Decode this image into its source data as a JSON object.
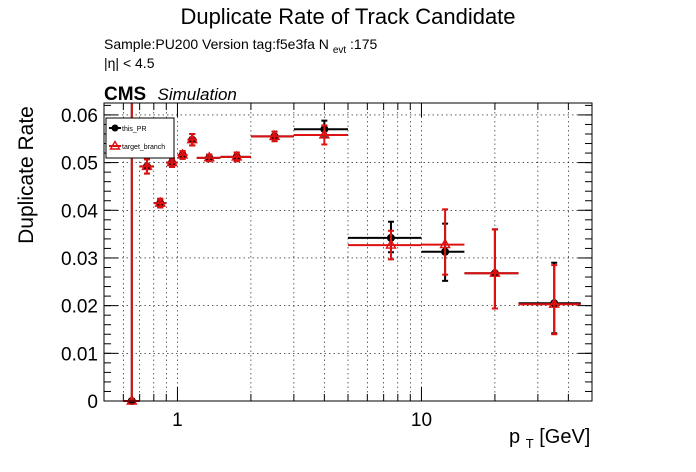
{
  "chart_data": {
    "type": "scatter",
    "title": "Duplicate Rate of Track Candidate",
    "info_line1": "Sample:PU200   Version tag:f5e3fa  N",
    "info_nevt_sub": "evt",
    "info_nevt_val": ":175",
    "info_line2": "|η| < 4.5",
    "cms_label": "CMS",
    "cms_sub": "Simulation",
    "xlabel_main": "p",
    "xlabel_sub": "T",
    "xlabel_unit": " [GeV]",
    "ylabel": "Duplicate Rate",
    "x_scale": "log",
    "xlim": [
      0.5,
      50
    ],
    "ylim": [
      0,
      0.0625
    ],
    "grid": true,
    "legend_position": "top-left",
    "x_tick_labels": [
      {
        "value": 1,
        "label": "1"
      },
      {
        "value": 10,
        "label": "10"
      }
    ],
    "y_tick_labels": [
      {
        "value": 0,
        "label": "0"
      },
      {
        "value": 0.01,
        "label": "0.01"
      },
      {
        "value": 0.02,
        "label": "0.02"
      },
      {
        "value": 0.03,
        "label": "0.03"
      },
      {
        "value": 0.04,
        "label": "0.04"
      },
      {
        "value": 0.05,
        "label": "0.05"
      },
      {
        "value": 0.06,
        "label": "0.06"
      }
    ],
    "series": [
      {
        "name": "this_PR",
        "color": "#000000",
        "marker": "circle",
        "points": [
          {
            "x": 0.65,
            "xlo": 0.6,
            "xhi": 0.7,
            "y": 0.0,
            "ylo": 0.0,
            "yhi": 0.0625
          },
          {
            "x": 0.75,
            "xlo": 0.7,
            "xhi": 0.8,
            "y": 0.0492,
            "ylo": 0.0477,
            "yhi": 0.0507
          },
          {
            "x": 0.85,
            "xlo": 0.8,
            "xhi": 0.9,
            "y": 0.0415,
            "ylo": 0.0406,
            "yhi": 0.0424
          },
          {
            "x": 0.95,
            "xlo": 0.9,
            "xhi": 1.0,
            "y": 0.05,
            "ylo": 0.0491,
            "yhi": 0.0509
          },
          {
            "x": 1.05,
            "xlo": 1.0,
            "xhi": 1.1,
            "y": 0.0516,
            "ylo": 0.0508,
            "yhi": 0.0524
          },
          {
            "x": 1.15,
            "xlo": 1.1,
            "xhi": 1.2,
            "y": 0.0548,
            "ylo": 0.0536,
            "yhi": 0.056
          },
          {
            "x": 1.35,
            "xlo": 1.2,
            "xhi": 1.5,
            "y": 0.051,
            "ylo": 0.0503,
            "yhi": 0.0517
          },
          {
            "x": 1.75,
            "xlo": 1.5,
            "xhi": 2.0,
            "y": 0.0512,
            "ylo": 0.0503,
            "yhi": 0.0521
          },
          {
            "x": 2.5,
            "xlo": 2.0,
            "xhi": 3.0,
            "y": 0.0555,
            "ylo": 0.0545,
            "yhi": 0.0565
          },
          {
            "x": 4.0,
            "xlo": 3.0,
            "xhi": 5.0,
            "y": 0.057,
            "ylo": 0.0553,
            "yhi": 0.0588
          },
          {
            "x": 7.5,
            "xlo": 5.0,
            "xhi": 10.0,
            "y": 0.0342,
            "ylo": 0.0312,
            "yhi": 0.0376
          },
          {
            "x": 12.5,
            "xlo": 10.0,
            "xhi": 15.0,
            "y": 0.0313,
            "ylo": 0.0252,
            "yhi": 0.0372
          },
          {
            "x": 20.0,
            "xlo": 15.0,
            "xhi": 25.0,
            "y": 0.0268,
            "ylo": 0.0194,
            "yhi": 0.036
          },
          {
            "x": 35.0,
            "xlo": 25.0,
            "xhi": 45.0,
            "y": 0.0205,
            "ylo": 0.0142,
            "yhi": 0.029
          }
        ]
      },
      {
        "name": "target_branch",
        "color": "#dd1111",
        "marker": "triangle-open",
        "points": [
          {
            "x": 0.65,
            "xlo": 0.6,
            "xhi": 0.7,
            "y": 0.0,
            "ylo": 0.0,
            "yhi": 0.0625
          },
          {
            "x": 0.75,
            "xlo": 0.7,
            "xhi": 0.8,
            "y": 0.0492,
            "ylo": 0.0477,
            "yhi": 0.0507
          },
          {
            "x": 0.85,
            "xlo": 0.8,
            "xhi": 0.9,
            "y": 0.0415,
            "ylo": 0.0406,
            "yhi": 0.0424
          },
          {
            "x": 0.95,
            "xlo": 0.9,
            "xhi": 1.0,
            "y": 0.05,
            "ylo": 0.0491,
            "yhi": 0.0509
          },
          {
            "x": 1.05,
            "xlo": 1.0,
            "xhi": 1.1,
            "y": 0.0516,
            "ylo": 0.0508,
            "yhi": 0.0524
          },
          {
            "x": 1.15,
            "xlo": 1.1,
            "xhi": 1.2,
            "y": 0.0548,
            "ylo": 0.0536,
            "yhi": 0.056
          },
          {
            "x": 1.35,
            "xlo": 1.2,
            "xhi": 1.5,
            "y": 0.051,
            "ylo": 0.0503,
            "yhi": 0.0517
          },
          {
            "x": 1.75,
            "xlo": 1.5,
            "xhi": 2.0,
            "y": 0.0512,
            "ylo": 0.0503,
            "yhi": 0.0521
          },
          {
            "x": 2.5,
            "xlo": 2.0,
            "xhi": 3.0,
            "y": 0.0555,
            "ylo": 0.0545,
            "yhi": 0.0565
          },
          {
            "x": 4.0,
            "xlo": 3.0,
            "xhi": 5.0,
            "y": 0.0558,
            "ylo": 0.0538,
            "yhi": 0.0578
          },
          {
            "x": 7.5,
            "xlo": 5.0,
            "xhi": 10.0,
            "y": 0.0327,
            "ylo": 0.0297,
            "yhi": 0.0357
          },
          {
            "x": 12.5,
            "xlo": 10.0,
            "xhi": 15.0,
            "y": 0.0328,
            "ylo": 0.0265,
            "yhi": 0.0402
          },
          {
            "x": 20.0,
            "xlo": 15.0,
            "xhi": 25.0,
            "y": 0.0268,
            "ylo": 0.0194,
            "yhi": 0.036
          },
          {
            "x": 35.0,
            "xlo": 25.0,
            "xhi": 45.0,
            "y": 0.0203,
            "ylo": 0.014,
            "yhi": 0.0285
          }
        ]
      }
    ]
  }
}
